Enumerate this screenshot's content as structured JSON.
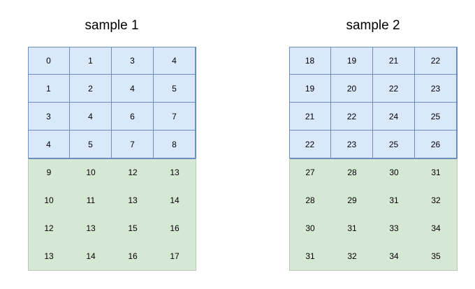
{
  "colors": {
    "blue_fill": "#dae8fc",
    "blue_stroke": "#6c8ebf",
    "green_fill": "#d5e8d4"
  },
  "samples": [
    {
      "title": "sample 1",
      "blue_rows": [
        [
          "0",
          "1",
          "3",
          "4"
        ],
        [
          "1",
          "2",
          "4",
          "5"
        ],
        [
          "3",
          "4",
          "6",
          "7"
        ],
        [
          "4",
          "5",
          "7",
          "8"
        ]
      ],
      "green_rows": [
        [
          "9",
          "10",
          "12",
          "13"
        ],
        [
          "10",
          "11",
          "13",
          "14"
        ],
        [
          "12",
          "13",
          "15",
          "16"
        ],
        [
          "13",
          "14",
          "16",
          "17"
        ]
      ]
    },
    {
      "title": "sample 2",
      "blue_rows": [
        [
          "18",
          "19",
          "21",
          "22"
        ],
        [
          "19",
          "20",
          "22",
          "23"
        ],
        [
          "21",
          "22",
          "24",
          "25"
        ],
        [
          "22",
          "23",
          "25",
          "26"
        ]
      ],
      "green_rows": [
        [
          "27",
          "28",
          "30",
          "31"
        ],
        [
          "28",
          "29",
          "31",
          "32"
        ],
        [
          "30",
          "31",
          "33",
          "34"
        ],
        [
          "31",
          "32",
          "34",
          "35"
        ]
      ]
    }
  ]
}
